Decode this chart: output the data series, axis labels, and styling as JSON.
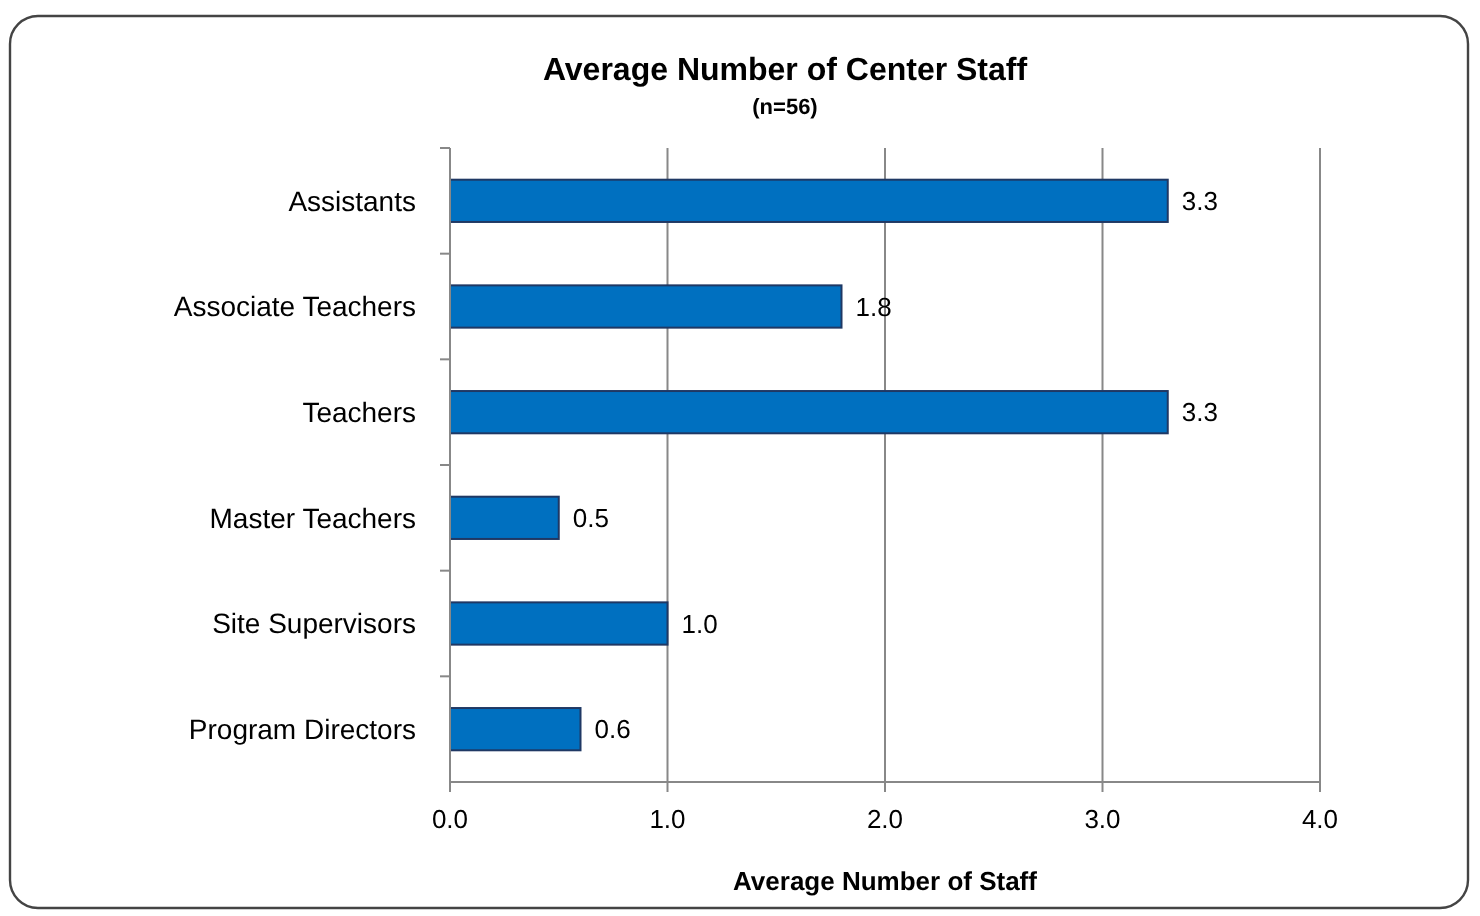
{
  "chart_data": {
    "type": "bar",
    "orientation": "horizontal",
    "title": "Average Number of Center Staff",
    "subtitle": "(n=56)",
    "xlabel": "Average Number of Staff",
    "categories": [
      "Assistants",
      "Associate Teachers",
      "Teachers",
      "Master Teachers",
      "Site Supervisors",
      "Program Directors"
    ],
    "values": [
      3.3,
      1.8,
      3.3,
      0.5,
      1.0,
      0.6
    ],
    "value_labels": [
      "3.3",
      "1.8",
      "3.3",
      "0.5",
      "1.0",
      "0.6"
    ],
    "color": "#0070c0",
    "xlim": [
      0,
      4
    ],
    "xticks": [
      {
        "value": 0,
        "label": "0.0"
      },
      {
        "value": 1,
        "label": "1.0"
      },
      {
        "value": 2,
        "label": "2.0"
      },
      {
        "value": 3,
        "label": "3.0"
      },
      {
        "value": 4,
        "label": "4.0"
      }
    ],
    "grid": "x"
  }
}
